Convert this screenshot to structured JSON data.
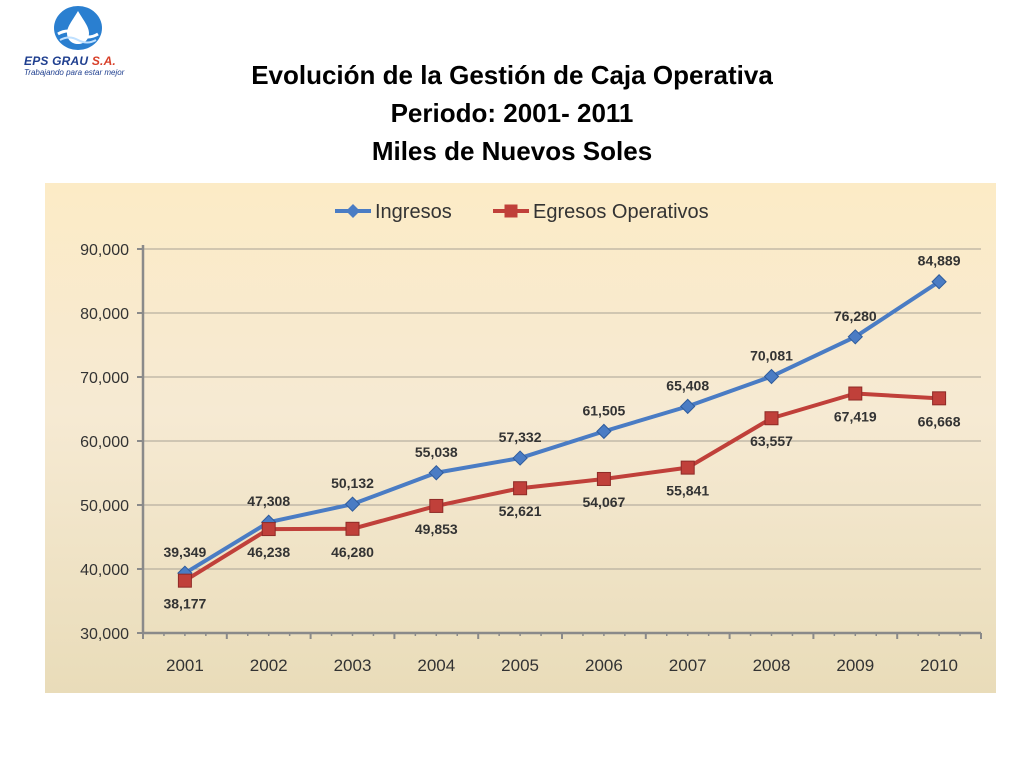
{
  "logo": {
    "brand": "EPS GRAU",
    "brand_suffix": "S.A.",
    "tagline": "Trabajando para estar mejor"
  },
  "title": {
    "line1": "Evolución de la Gestión de Caja Operativa",
    "line2": "Periodo: 2001- 2011",
    "line3": "Miles de Nuevos Soles"
  },
  "chart_data": {
    "type": "line",
    "categories": [
      "2001",
      "2002",
      "2003",
      "2004",
      "2005",
      "2006",
      "2007",
      "2008",
      "2009",
      "2010"
    ],
    "series": [
      {
        "name": "Ingresos",
        "color": "#4a7cc4",
        "marker": "diamond",
        "values": [
          39349,
          47308,
          50132,
          55038,
          57332,
          61505,
          65408,
          70081,
          76280,
          84889
        ],
        "labels": [
          "39,349",
          "47,308",
          "50,132",
          "55,038",
          "57,332",
          "61,505",
          "65,408",
          "70,081",
          "76,280",
          "84,889"
        ],
        "label_position": "above"
      },
      {
        "name": "Egresos Operativos",
        "color": "#c0403a",
        "marker": "square",
        "values": [
          38177,
          46238,
          46280,
          49853,
          52621,
          54067,
          55841,
          63557,
          67419,
          66668
        ],
        "labels": [
          "38,177",
          "46,238",
          "46,280",
          "49,853",
          "52,621",
          "54,067",
          "55,841",
          "63,557",
          "67,419",
          "66,668"
        ],
        "label_position": "below"
      }
    ],
    "ylim": [
      30000,
      90000
    ],
    "yticks": [
      30000,
      40000,
      50000,
      60000,
      70000,
      80000,
      90000
    ],
    "ytick_labels": [
      "30,000",
      "40,000",
      "50,000",
      "60,000",
      "70,000",
      "80,000",
      "90,000"
    ],
    "grid": true,
    "legend": "top-center",
    "xlabel": "",
    "ylabel": ""
  }
}
